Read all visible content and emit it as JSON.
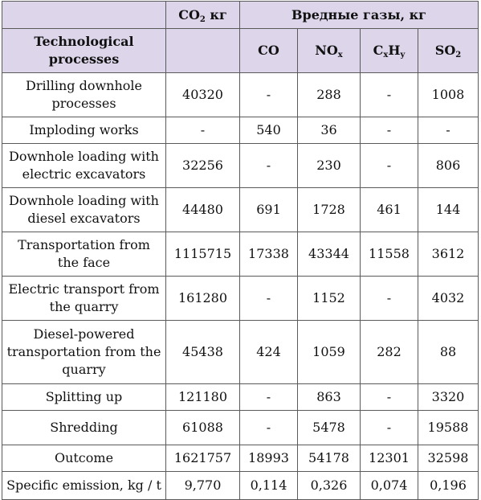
{
  "header": {
    "co2": {
      "main": "CO",
      "sub": "2",
      "unit": " кг"
    },
    "harmful_gases": "Вредные газы, кг",
    "processes": "Technological processes",
    "gases": [
      {
        "main": "CO",
        "sub": ""
      },
      {
        "main": "NO",
        "sub": "x"
      },
      {
        "main": "C",
        "sub": "x",
        "main2": "H",
        "sub2": "y"
      },
      {
        "main": "SO",
        "sub": "2"
      }
    ]
  },
  "rows": [
    {
      "process": "Drilling downhole processes",
      "co2": "40320",
      "co": "-",
      "nox": "288",
      "cxhy": "-",
      "so2": "1008"
    },
    {
      "process": "Imploding works",
      "co2": "-",
      "co": "540",
      "nox": "36",
      "cxhy": "-",
      "so2": "-"
    },
    {
      "process": "Downhole loading with electric excavators",
      "co2": "32256",
      "co": "-",
      "nox": "230",
      "cxhy": "-",
      "so2": "806"
    },
    {
      "process": "Downhole loading with diesel excavators",
      "co2": "44480",
      "co": "691",
      "nox": "1728",
      "cxhy": "461",
      "so2": "144"
    },
    {
      "process": "Transportation from the face",
      "co2": "1115715",
      "co": "17338",
      "nox": "43344",
      "cxhy": "11558",
      "so2": "3612"
    },
    {
      "process": "Electric transport from the quarry",
      "co2": "161280",
      "co": "-",
      "nox": "1152",
      "cxhy": "-",
      "so2": "4032"
    },
    {
      "process": "Diesel-powered transportation from the quarry",
      "co2": "45438",
      "co": "424",
      "nox": "1059",
      "cxhy": "282",
      "so2": "88"
    },
    {
      "process": "Splitting up",
      "co2": "121180",
      "co": "-",
      "nox": "863",
      "cxhy": "-",
      "so2": "3320"
    },
    {
      "process": "Shredding",
      "co2": "61088",
      "co": "-",
      "nox": "5478",
      "cxhy": "-",
      "so2": "19588"
    },
    {
      "process": "Outcome",
      "co2": "1621757",
      "co": "18993",
      "nox": "54178",
      "cxhy": "12301",
      "so2": "32598"
    },
    {
      "process": "Specific emission, kg / t",
      "co2": "9,770",
      "co": "0,114",
      "nox": "0,326",
      "cxhy": "0,074",
      "so2": "0,196"
    }
  ]
}
